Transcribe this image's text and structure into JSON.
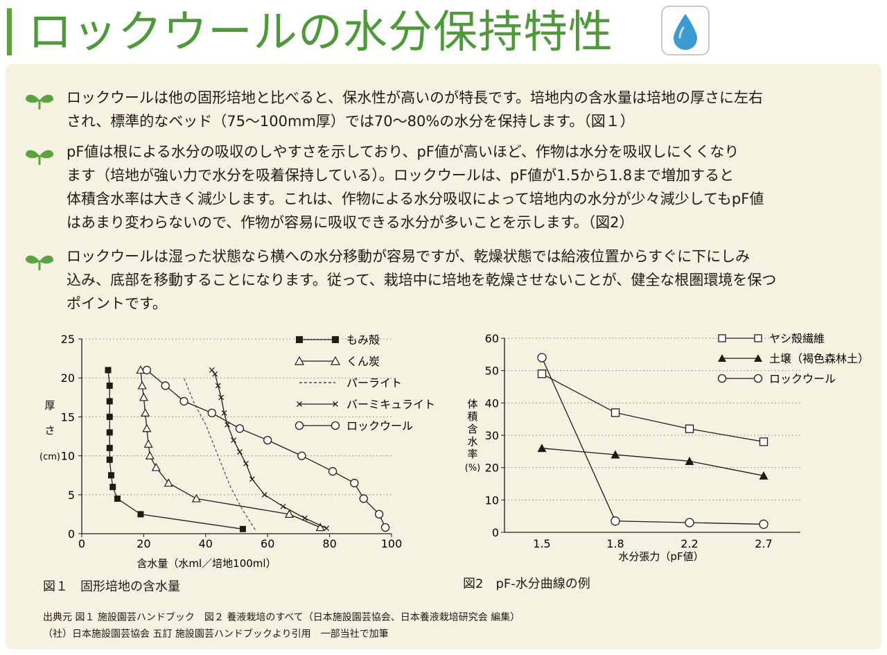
{
  "title": "ロックウールの水分保持特性",
  "icon": "water-drop-icon",
  "paragraphs": [
    {
      "lines": [
        "ロックウールは他の固形培地と比べると、保水性が高いのが特長です。培地内の含水量は培地の厚さに左右",
        "され、標準的なベッド（75〜100mm厚）では70〜80%の水分を保持します。（図１）"
      ]
    },
    {
      "lines": [
        "pF値は根による水分の吸収のしやすさを示しており、pF値が高いほど、作物は水分を吸収しにくくなり",
        "ます（培地が強い力で水分を吸着保持している）。ロックウールは、pF値が1.5から1.8まで増加すると",
        "体積含水率は大きく減少します。これは、作物による水分吸収によって培地内の水分が少々減少してもpF値",
        "はあまり変わらないので、作物が容易に吸収できる水分が多いことを示します。（図2）"
      ]
    },
    {
      "lines": [
        "ロックウールは湿った状態なら横への水分移動が容易ですが、乾燥状態では給液位置からすぐに下にしみ",
        "込み、底部を移動することになります。従って、栽培中に培地を乾燥させないことが、健全な根圏環境を保つ",
        "ポイントです。"
      ]
    }
  ],
  "chart_data": [
    {
      "type": "line",
      "caption": "図１　固形培地の含水量",
      "xlabel": "含水量（水ml／培地100ml）",
      "ylabel_chars": [
        "厚",
        "さ"
      ],
      "ylabel_unit": "(cm)",
      "xlim": [
        0,
        100
      ],
      "ylim": [
        0,
        25
      ],
      "xticks": [
        0,
        20,
        40,
        60,
        80,
        100
      ],
      "yticks": [
        0,
        5,
        10,
        15,
        20,
        25
      ],
      "grid": "horizontal-dotted",
      "legend": "top-right",
      "series": [
        {
          "name": "もみ殻",
          "marker": "filled-square",
          "style": "solid",
          "points": [
            [
              52,
              0.6
            ],
            [
              19,
              2.5
            ],
            [
              11.5,
              4.5
            ],
            [
              10,
              6
            ],
            [
              9.5,
              7.5
            ],
            [
              9,
              9.5
            ],
            [
              9,
              11
            ],
            [
              9,
              13
            ],
            [
              9,
              15
            ],
            [
              9,
              17
            ],
            [
              9,
              19
            ],
            [
              8.5,
              21
            ]
          ]
        },
        {
          "name": "くん炭",
          "marker": "open-triangle",
          "style": "solid",
          "points": [
            [
              77,
              0.8
            ],
            [
              67,
              2.5
            ],
            [
              37,
              4.5
            ],
            [
              28,
              6.5
            ],
            [
              24,
              8.5
            ],
            [
              22,
              10
            ],
            [
              21.5,
              11.5
            ],
            [
              21,
              13.5
            ],
            [
              20.5,
              15.5
            ],
            [
              20,
              17.5
            ],
            [
              19.5,
              19
            ],
            [
              19,
              21
            ]
          ]
        },
        {
          "name": "パーライト",
          "marker": "none",
          "style": "dashed",
          "points": [
            [
              56,
              0.5
            ],
            [
              52,
              3
            ],
            [
              48,
              6
            ],
            [
              44,
              10
            ],
            [
              40,
              14
            ],
            [
              36,
              17
            ],
            [
              33,
              20
            ]
          ]
        },
        {
          "name": "バーミキュライト",
          "marker": "x",
          "style": "solid",
          "points": [
            [
              79,
              0.7
            ],
            [
              72,
              2
            ],
            [
              65,
              3.5
            ],
            [
              59,
              5
            ],
            [
              55,
              7
            ],
            [
              53,
              9
            ],
            [
              51,
              10.5
            ],
            [
              49,
              12
            ],
            [
              47,
              14
            ],
            [
              46,
              15.5
            ],
            [
              45,
              17.5
            ],
            [
              44,
              19
            ],
            [
              43,
              20.5
            ],
            [
              42,
              21
            ]
          ]
        },
        {
          "name": "ロックウール",
          "marker": "open-circle",
          "style": "solid",
          "points": [
            [
              98,
              0.8
            ],
            [
              96,
              2.5
            ],
            [
              91,
              4.5
            ],
            [
              88,
              6.5
            ],
            [
              81,
              8
            ],
            [
              71,
              10
            ],
            [
              60,
              12
            ],
            [
              51,
              13.5
            ],
            [
              42,
              15.5
            ],
            [
              33,
              17
            ],
            [
              27,
              19
            ],
            [
              21,
              21
            ]
          ]
        }
      ]
    },
    {
      "type": "line",
      "caption": "図2　pF-水分曲線の例",
      "xlabel": "水分張力（pF値）",
      "ylabel_chars": [
        "体",
        "積",
        "含",
        "水",
        "率"
      ],
      "ylabel_unit": "(%)",
      "categories": [
        "1.5",
        "1.8",
        "2.2",
        "2.7"
      ],
      "ylim": [
        0,
        60
      ],
      "yticks": [
        0,
        10,
        20,
        30,
        40,
        50,
        60
      ],
      "grid": "horizontal-dotted",
      "legend": "top-right",
      "series": [
        {
          "name": "ヤシ殻繊維",
          "marker": "open-square",
          "values": [
            49,
            37,
            32,
            28
          ]
        },
        {
          "name": "土壌（褐色森林土）",
          "marker": "filled-triangle",
          "values": [
            26,
            24,
            22,
            17.5
          ]
        },
        {
          "name": "ロックウール",
          "marker": "open-circle",
          "values": [
            54,
            3.5,
            3,
            2.5
          ]
        }
      ]
    }
  ],
  "source_lines": [
    "出典元 図１ 施設園芸ハンドブック　図２ 養液栽培のすべて（日本施設園芸協会、日本養液栽培研究会 編集）",
    "（社）日本施設園芸協会 五訂 施設園芸ハンドブックより引用　一部当社で加筆"
  ],
  "colors": {
    "title": "#4e9a3b",
    "panel": "#f5f2e2",
    "sprout": "#5aa340",
    "drop": "#3d9ad1"
  }
}
